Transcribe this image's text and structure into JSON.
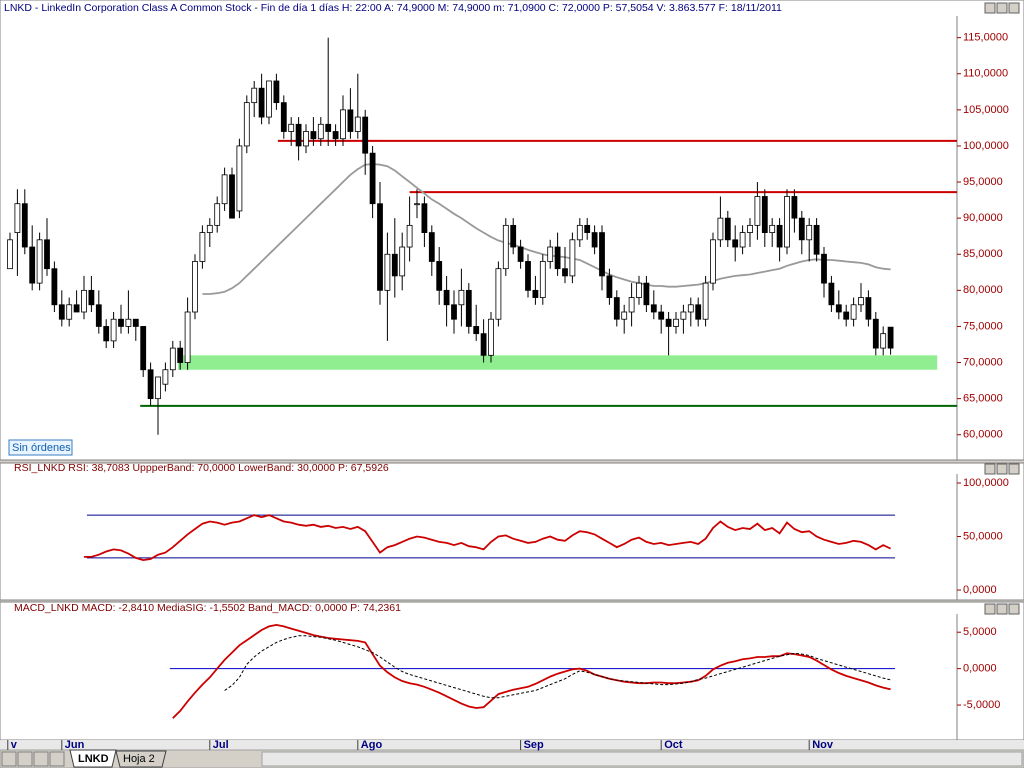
{
  "status_button": "Sin órdenes",
  "sheet_tabs": [
    "LNKD",
    "Hoja 2"
  ],
  "chart_data": [
    {
      "type": "candlestick",
      "title": "LNKD - LinkedIn Corporation Class A Common Stock - Fin de día 1 días  H: 22:00  A: 74,9000  M: 74,9000  m: 71,0900  C: 72,0000  P: 57,5054  V: 3.863.577  F: 18/11/2011",
      "ylim": [
        56.5,
        118
      ],
      "yticks": [
        {
          "value": 60,
          "label": "60,0000"
        },
        {
          "value": 65,
          "label": "65,0000"
        },
        {
          "value": 70,
          "label": "70,0000"
        },
        {
          "value": 75,
          "label": "75,0000"
        },
        {
          "value": 80,
          "label": "80,0000"
        },
        {
          "value": 85,
          "label": "85,0000"
        },
        {
          "value": 90,
          "label": "90,0000"
        },
        {
          "value": 95,
          "label": "95,0000"
        },
        {
          "value": 100,
          "label": "100,0000"
        },
        {
          "value": 105,
          "label": "105,0000"
        },
        {
          "value": 110,
          "label": "110,0000"
        },
        {
          "value": 115,
          "label": "115,0000"
        }
      ],
      "up_color": "#ffffff",
      "down_color": "#000000",
      "open": [
        83,
        88,
        92,
        86,
        81,
        87,
        83,
        78,
        76,
        78,
        77,
        80,
        78,
        75,
        73,
        76,
        75,
        76,
        75,
        69,
        65,
        67,
        69,
        72,
        70,
        77,
        84,
        88,
        89,
        92,
        96,
        91,
        100,
        106,
        108,
        104,
        109,
        106,
        102,
        103,
        100,
        102,
        101,
        103,
        102,
        101,
        105,
        102,
        104,
        99,
        92,
        80,
        85,
        82,
        86,
        92,
        92,
        88,
        84,
        80,
        78,
        78,
        80,
        75,
        74,
        71,
        76,
        83,
        89,
        86,
        84,
        80,
        79,
        84,
        86,
        83,
        82,
        87,
        89,
        88,
        88,
        82,
        79,
        76,
        77,
        79,
        81,
        78,
        77,
        76,
        75,
        76,
        77,
        78,
        76,
        81,
        87,
        90,
        87,
        86,
        88,
        89,
        93,
        88,
        89,
        86,
        93,
        90,
        87,
        89,
        85,
        81,
        78,
        77,
        76,
        78,
        79,
        76,
        72,
        74.9
      ],
      "high": [
        88,
        94,
        94,
        89,
        88,
        90,
        84,
        80,
        79,
        80,
        82,
        82,
        80,
        76,
        77,
        78,
        80,
        76,
        75,
        70,
        68,
        70,
        73,
        73,
        79,
        85,
        89,
        90,
        93,
        97,
        97,
        101,
        107,
        109,
        110,
        109,
        110,
        107,
        104,
        104,
        103,
        104,
        104,
        115,
        103,
        107,
        108,
        110,
        105,
        100,
        95,
        88,
        90,
        88,
        93,
        94,
        93,
        89,
        86,
        82,
        80,
        83,
        81,
        78,
        76,
        77,
        84,
        90,
        90,
        87,
        85,
        82,
        85,
        87,
        88,
        86,
        88,
        90,
        90,
        89,
        89,
        83,
        80,
        78,
        81,
        82,
        82,
        80,
        78,
        77,
        77,
        78,
        79,
        79,
        82,
        88,
        93,
        91,
        89,
        89,
        90,
        95,
        94,
        90,
        90,
        94,
        94,
        91,
        90,
        90,
        86,
        82,
        80,
        78,
        79,
        81,
        80,
        77,
        75,
        74.9
      ],
      "low": [
        83,
        82,
        85,
        80,
        80,
        82,
        77,
        75,
        75,
        77,
        76,
        77,
        74,
        72,
        72,
        74,
        74,
        73,
        68,
        64,
        60,
        66,
        68,
        69,
        69,
        76,
        83,
        86,
        88,
        91,
        90,
        90,
        99,
        104,
        103,
        103,
        105,
        101,
        100,
        98,
        99,
        100,
        100,
        100,
        100,
        100,
        101,
        101,
        96,
        90,
        78,
        73,
        79,
        80,
        84,
        90,
        86,
        82,
        78,
        75,
        74,
        75,
        74,
        73,
        70,
        70,
        75,
        82,
        85,
        83,
        79,
        78,
        78,
        83,
        82,
        81,
        81,
        86,
        87,
        85,
        80,
        78,
        75,
        74,
        75,
        78,
        77,
        76,
        74,
        71,
        74,
        74,
        75,
        75,
        75,
        80,
        86,
        86,
        84,
        85,
        86,
        87,
        86,
        86,
        84,
        85,
        88,
        85,
        84,
        84,
        79,
        77,
        76,
        75,
        75,
        77,
        75,
        71,
        71,
        71.09
      ],
      "close": [
        87,
        92,
        86,
        81,
        87,
        83,
        78,
        76,
        78,
        77,
        80,
        78,
        75,
        73,
        76,
        75,
        76,
        75,
        69,
        65,
        68,
        69,
        72,
        70,
        77,
        84,
        88,
        89,
        92,
        96,
        90,
        100,
        106,
        108,
        104,
        109,
        106,
        102,
        103,
        100,
        102,
        101,
        103,
        102,
        101,
        105,
        102,
        104,
        99,
        92,
        80,
        85,
        82,
        86,
        89,
        92,
        88,
        84,
        80,
        78,
        76,
        80,
        75,
        74,
        71,
        76,
        83,
        89,
        86,
        84,
        80,
        79,
        84,
        86,
        83,
        82,
        87,
        89,
        88,
        86,
        82,
        79,
        76,
        77,
        79,
        81,
        78,
        77,
        76,
        75,
        76,
        77,
        78,
        76,
        81,
        87,
        90,
        87,
        86,
        88,
        89,
        93,
        88,
        89,
        86,
        93,
        90,
        87,
        89,
        85,
        81,
        78,
        77,
        76,
        78,
        79,
        76,
        72,
        74,
        72
      ],
      "series": [
        {
          "color": "#999999",
          "dash": false,
          "values": [
            null,
            null,
            null,
            null,
            null,
            null,
            null,
            null,
            null,
            null,
            null,
            null,
            null,
            null,
            null,
            null,
            null,
            null,
            null,
            null,
            null,
            null,
            null,
            null,
            null,
            null,
            79.5,
            79.5,
            79.6,
            79.8,
            80.3,
            81,
            82,
            83,
            84,
            85,
            86,
            87,
            88,
            89,
            90,
            91,
            92,
            93,
            94,
            95,
            96,
            96.8,
            97.4,
            97.5,
            97.4,
            97.2,
            96.6,
            95.8,
            95,
            94.2,
            93.4,
            92.6,
            92,
            91.3,
            90.6,
            90,
            89.3,
            88.6,
            88,
            87.4,
            86.9,
            86.6,
            86.3,
            86,
            85.6,
            85.3,
            85,
            84.8,
            84.7,
            84.6,
            84.4,
            84.2,
            83.7,
            83.2,
            82.7,
            82.2,
            81.8,
            81.5,
            81.2,
            81,
            80.8,
            80.6,
            80.6,
            80.5,
            80.5,
            80.6,
            80.7,
            80.8,
            81,
            81.3,
            81.6,
            81.8,
            82,
            82.1,
            82.2,
            82.4,
            82.6,
            82.8,
            83,
            83.4,
            83.7,
            84,
            84.2,
            84.3,
            84.2,
            84.2,
            84.1,
            84,
            83.9,
            83.8,
            83.6,
            83.2,
            83,
            82.9
          ]
        }
      ],
      "bands": [
        {
          "low": 69,
          "high": 71,
          "from": 22.7,
          "to": 125.3,
          "color": "#90ee90"
        }
      ],
      "levels": [
        {
          "value": 100.7,
          "from": 36.2,
          "to": 128,
          "color": "#cc0000"
        },
        {
          "value": 93.6,
          "from": 54,
          "to": 128,
          "color": "#cc0000"
        },
        {
          "value": 64,
          "from": 17.6,
          "to": 128,
          "color": "#006400"
        }
      ]
    },
    {
      "type": "line",
      "title": "RSI_LNKD  RSI: 38,7083  UppperBand: 70,0000  LowerBand: 30,0000  P: 67,5926",
      "ylim": [
        -9.3,
        108.4
      ],
      "yticks": [
        {
          "value": 0,
          "label": "0,0000"
        },
        {
          "value": 50,
          "label": "50,0000"
        },
        {
          "value": 100,
          "label": "100,0000"
        }
      ],
      "series": [
        {
          "color": "#cc0000",
          "dash": false,
          "values": [
            null,
            null,
            null,
            null,
            null,
            null,
            null,
            null,
            null,
            null,
            31,
            31,
            33,
            36,
            38,
            37,
            34,
            30,
            28,
            29,
            33,
            35,
            40,
            46,
            52,
            57,
            62,
            64,
            63,
            61,
            63,
            64,
            67,
            70,
            68,
            70,
            67,
            64,
            63,
            61,
            60,
            61,
            59,
            60,
            58,
            59,
            57,
            59,
            55,
            45,
            35,
            40,
            42,
            45,
            48,
            50,
            49,
            47,
            45,
            44,
            42,
            44,
            41,
            40,
            38,
            45,
            50,
            51,
            48,
            46,
            44,
            45,
            48,
            50,
            47,
            46,
            51,
            55,
            54,
            52,
            48,
            44,
            40,
            43,
            47,
            49,
            45,
            43,
            44,
            42,
            43,
            44,
            45,
            43,
            48,
            58,
            64,
            59,
            56,
            58,
            57,
            62,
            56,
            58,
            53,
            63,
            57,
            54,
            55,
            50,
            47,
            45,
            43,
            44,
            46,
            45,
            42,
            38,
            42,
            38.7
          ]
        }
      ],
      "levels": [
        {
          "value": 70,
          "from": 10.4,
          "to": 119.6,
          "color": "#00008b"
        },
        {
          "value": 30,
          "from": 10.4,
          "to": 119.6,
          "color": "#00008b"
        }
      ]
    },
    {
      "type": "line",
      "title": "MACD_LNKD  MACD: -2,8410  MediaSIG: -1,5502  Band_MACD: 0,0000  P: 74,2361",
      "ylim": [
        -9.8,
        7.5
      ],
      "yticks": [
        {
          "value": -5,
          "label": "-5,0000"
        },
        {
          "value": 0,
          "label": "0,0000"
        },
        {
          "value": 5,
          "label": "5,0000"
        }
      ],
      "series": [
        {
          "color": "#cc0000",
          "dash": false,
          "values": [
            null,
            null,
            null,
            null,
            null,
            null,
            null,
            null,
            null,
            null,
            null,
            null,
            null,
            null,
            null,
            null,
            null,
            null,
            null,
            null,
            null,
            null,
            -6.8,
            -5.8,
            -4.5,
            -3.3,
            -2.2,
            -1.2,
            0,
            1.2,
            2.2,
            3.2,
            3.9,
            4.6,
            5.3,
            5.8,
            6.0,
            5.8,
            5.5,
            5.2,
            4.9,
            4.6,
            4.4,
            4.2,
            4.1,
            4.0,
            3.9,
            3.8,
            3.6,
            2.0,
            0.4,
            -0.5,
            -1.2,
            -1.7,
            -2.0,
            -2.2,
            -2.5,
            -2.9,
            -3.3,
            -3.8,
            -4.3,
            -4.8,
            -5.2,
            -5.4,
            -5.3,
            -4.4,
            -3.5,
            -3.2,
            -2.9,
            -2.7,
            -2.5,
            -2.1,
            -1.6,
            -1.1,
            -0.7,
            -0.4,
            -0.1,
            0,
            -0.3,
            -0.8,
            -1.1,
            -1.4,
            -1.6,
            -1.8,
            -1.9,
            -2.0,
            -2.0,
            -1.9,
            -1.9,
            -2.0,
            -2.0,
            -1.9,
            -1.8,
            -1.6,
            -1.0,
            -0.1,
            0.4,
            0.8,
            1.0,
            1.3,
            1.4,
            1.6,
            1.6,
            1.7,
            1.7,
            2.1,
            2.0,
            1.8,
            1.6,
            1.1,
            0.5,
            -0.1,
            -0.6,
            -1.0,
            -1.3,
            -1.6,
            -1.9,
            -2.3,
            -2.6,
            -2.841
          ]
        },
        {
          "color": "#000000",
          "dash": true,
          "values": [
            null,
            null,
            null,
            null,
            null,
            null,
            null,
            null,
            null,
            null,
            null,
            null,
            null,
            null,
            null,
            null,
            null,
            null,
            null,
            null,
            null,
            null,
            null,
            null,
            null,
            null,
            null,
            null,
            null,
            -3.0,
            -2.3,
            -1.2,
            0.6,
            1.6,
            2.4,
            3.0,
            3.6,
            4.0,
            4.3,
            4.5,
            4.5,
            4.4,
            4.3,
            4.1,
            3.9,
            3.6,
            3.3,
            3.0,
            2.6,
            2.2,
            1.6,
            0.9,
            0.2,
            -0.4,
            -0.8,
            -1.1,
            -1.4,
            -1.7,
            -2.0,
            -2.3,
            -2.6,
            -2.9,
            -3.2,
            -3.5,
            -3.8,
            -4.0,
            -4.0,
            -3.8,
            -3.6,
            -3.4,
            -3.2,
            -3.0,
            -2.6,
            -2.2,
            -1.8,
            -1.4,
            -0.8,
            -0.3,
            -0.5,
            -0.8,
            -1.1,
            -1.4,
            -1.6,
            -1.7,
            -1.8,
            -1.9,
            -2.0,
            -2.1,
            -2.2,
            -2.2,
            -2.1,
            -2.0,
            -1.8,
            -1.5,
            -1.3,
            -1.0,
            -0.7,
            -0.4,
            -0.1,
            0.2,
            0.5,
            0.8,
            1.1,
            1.4,
            1.7,
            1.9,
            2.1,
            2.0,
            1.8,
            1.4,
            1.1,
            0.8,
            0.5,
            0.2,
            -0.1,
            -0.4,
            -0.7,
            -1.0,
            -1.3,
            -1.5502
          ]
        }
      ],
      "levels": [
        {
          "value": 0,
          "from": 21.6,
          "to": 119.6,
          "color": "#0000cc"
        }
      ],
      "xticks": [
        {
          "value": -0.3,
          "label": "v"
        },
        {
          "value": 7,
          "label": "Jun"
        },
        {
          "value": 27,
          "label": "Jul"
        },
        {
          "value": 47,
          "label": "Ago"
        },
        {
          "value": 69,
          "label": "Sep"
        },
        {
          "value": 88,
          "label": "Oct"
        },
        {
          "value": 108,
          "label": "Nov"
        }
      ]
    }
  ]
}
